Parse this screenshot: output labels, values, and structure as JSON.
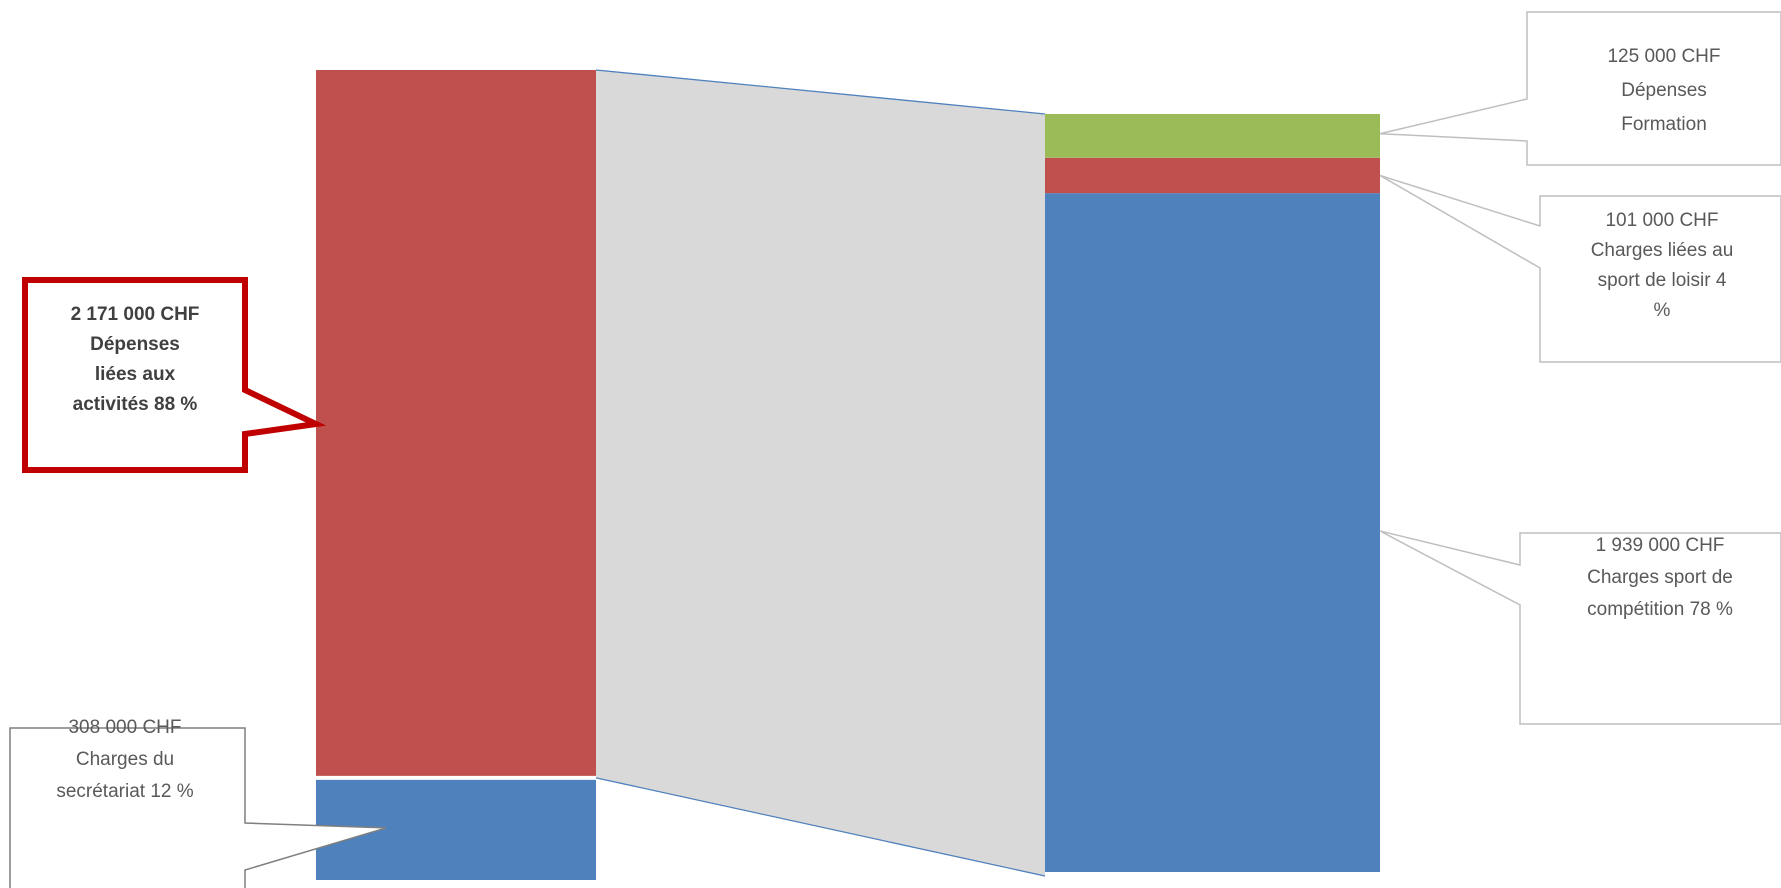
{
  "chart_data": {
    "type": "bar",
    "currency": "CHF",
    "stacks": [
      {
        "name": "",
        "segments": [
          {
            "key": "secretariat",
            "value": 308000,
            "percent": 12,
            "color": "#4F81BD",
            "label_lines": [
              "308 000 CHF",
              "Charges du",
              "secrétariat 12 %"
            ]
          },
          {
            "key": "activites",
            "value": 2171000,
            "percent": 88,
            "color": "#C0504D",
            "label_lines": [
              "2 171 000 CHF",
              "Dépenses",
              "liées aux",
              "activités 88 %"
            ]
          }
        ]
      },
      {
        "name": "",
        "segments": [
          {
            "key": "competition",
            "value": 1939000,
            "percent": 78,
            "color": "#4F81BD",
            "label_lines": [
              "1 939 000 CHF",
              "Charges sport de",
              "compétition 78 %"
            ]
          },
          {
            "key": "loisir",
            "value": 101000,
            "percent": 4,
            "color": "#C0504D",
            "label_lines": [
              "101 000 CHF",
              "Charges liées au",
              "sport de loisir 4",
              "%"
            ]
          },
          {
            "key": "formation",
            "value": 125000,
            "color": "#9BBB59",
            "label_lines": [
              "125 000 CHF",
              "Dépenses",
              "Formation"
            ]
          }
        ]
      }
    ],
    "connector_color": "#D9D9D9",
    "connector_line_color": "#4F81BD",
    "highlight_color": "#C00000",
    "callout_line_color": "#BFBFBF",
    "callout_border_dark": "#7F7F7F",
    "grid": false,
    "legend": "none"
  }
}
